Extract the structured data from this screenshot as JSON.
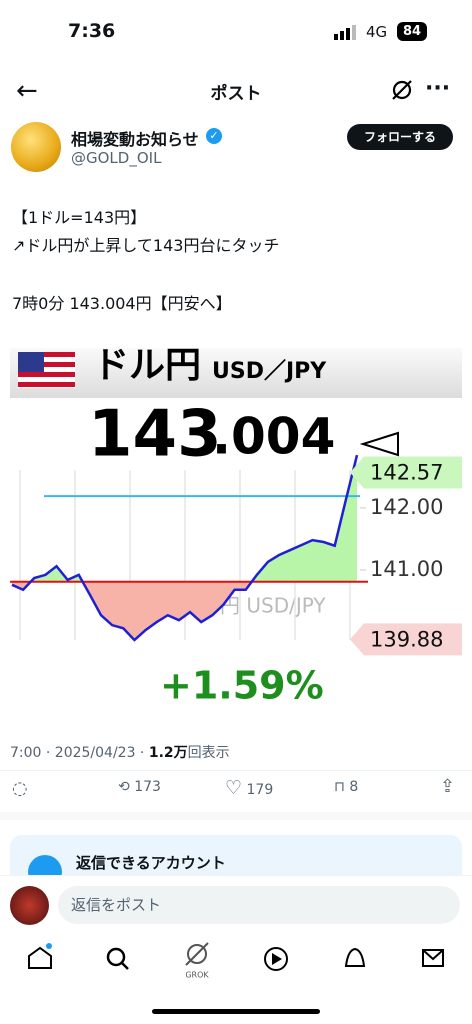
{
  "status_bar": {
    "time": "7:36",
    "network": "4G",
    "battery": "84"
  },
  "nav": {
    "title": "ポスト"
  },
  "author": {
    "name": "相場変動お知らせ",
    "handle": "@GOLD_OIL",
    "follow": "フォローする"
  },
  "post": {
    "lines": [
      "【1ドル=143円】",
      "↗ドル円が上昇して143円台にタッチ",
      "7時0分 143.004円【円安へ】"
    ]
  },
  "chart_data": {
    "type": "line",
    "title": "ドル円",
    "subtitle": "USD／JPY",
    "price_main": "143",
    "price_decimal": ".004",
    "watermark": "ドル円 USD/JPY",
    "change": "+1.59%",
    "color": "#1f1fd6",
    "values": [
      140.76,
      140.68,
      140.87,
      140.92,
      141.06,
      140.84,
      140.92,
      140.6,
      140.27,
      140.11,
      140.06,
      139.87,
      140.03,
      140.16,
      140.27,
      140.19,
      140.32,
      140.16,
      140.27,
      140.44,
      140.68,
      140.68,
      140.92,
      141.13,
      141.24,
      141.32,
      141.4,
      141.48,
      141.45,
      141.39,
      142.13,
      142.85
    ],
    "base_line": 140.81,
    "high_line": 142.19,
    "ylim": [
      139.8,
      143.4
    ],
    "yticks": [
      {
        "value": 142,
        "label": "142.00"
      },
      {
        "value": 141,
        "label": "141.00"
      }
    ],
    "markers": [
      {
        "value": 142.57,
        "color": "#c9f7bd"
      },
      {
        "value": 139.88,
        "color": "#f9d4d4"
      }
    ]
  },
  "meta": {
    "time": "7:00 · 2025/04/23 · ",
    "views": "1.2万",
    "views_suffix": "回表示"
  },
  "actions": {
    "reposts": "173",
    "likes": "179",
    "bookmarks": "8"
  },
  "reply_notice": "返信できるアカウント",
  "reply_placeholder": "返信をポスト",
  "tabs": {
    "grok": "GROK"
  }
}
